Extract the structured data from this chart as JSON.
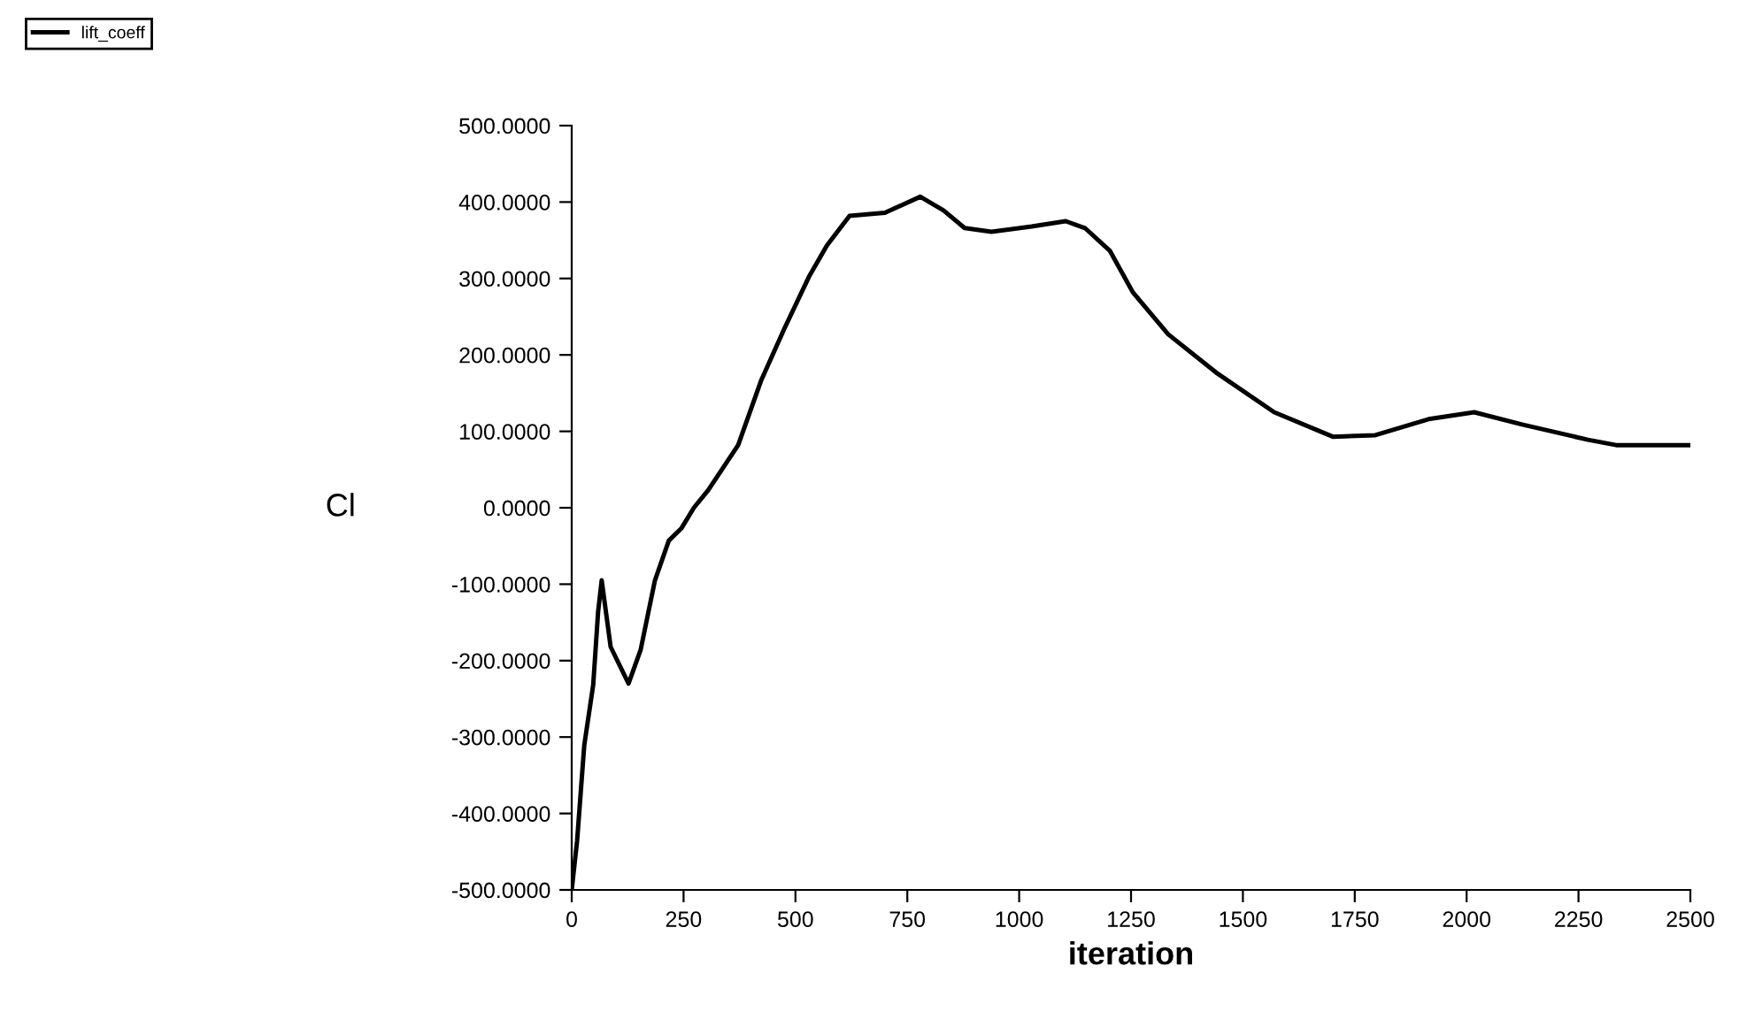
{
  "chart_data": {
    "type": "line",
    "xlabel": "iteration",
    "ylabel": "Cl",
    "series": [
      {
        "name": "lift_coeff",
        "color": "#000000",
        "x": [
          0,
          12,
          28,
          48,
          59,
          67,
          87,
          127,
          154,
          186,
          217,
          245,
          273,
          305,
          372,
          423,
          475,
          530,
          570,
          621,
          700,
          779,
          831,
          878,
          938,
          1028,
          1104,
          1147,
          1203,
          1254,
          1333,
          1440,
          1570,
          1701,
          1796,
          1915,
          2017,
          2124,
          2271,
          2334,
          2500
        ],
        "values": [
          -500,
          -436,
          -311,
          -232,
          -136,
          -95,
          -182,
          -230,
          -186,
          -95,
          -43,
          -27,
          0,
          23,
          82,
          166,
          234,
          302,
          343,
          382,
          386,
          407,
          389,
          366,
          361,
          368,
          375,
          366,
          336,
          282,
          227,
          177,
          125,
          93,
          95,
          116,
          125,
          109,
          89,
          82,
          82
        ]
      }
    ],
    "xlim": [
      0,
      2500
    ],
    "xticks": [
      0,
      250,
      500,
      750,
      1000,
      1250,
      1500,
      1750,
      2000,
      2250,
      2500
    ],
    "ylim": [
      -500,
      500
    ],
    "yticks": [
      {
        "value": -500,
        "label": "-500.0000"
      },
      {
        "value": -400,
        "label": "-400.0000"
      },
      {
        "value": -300,
        "label": "-300.0000"
      },
      {
        "value": -200,
        "label": "-200.0000"
      },
      {
        "value": -100,
        "label": "-100.0000"
      },
      {
        "value": 0,
        "label": "0.0000"
      },
      {
        "value": 100,
        "label": "100.0000"
      },
      {
        "value": 200,
        "label": "200.0000"
      },
      {
        "value": 300,
        "label": "300.0000"
      },
      {
        "value": 400,
        "label": "400.0000"
      },
      {
        "value": 500,
        "label": "500.0000"
      }
    ],
    "grid": false,
    "legend": "top left"
  }
}
